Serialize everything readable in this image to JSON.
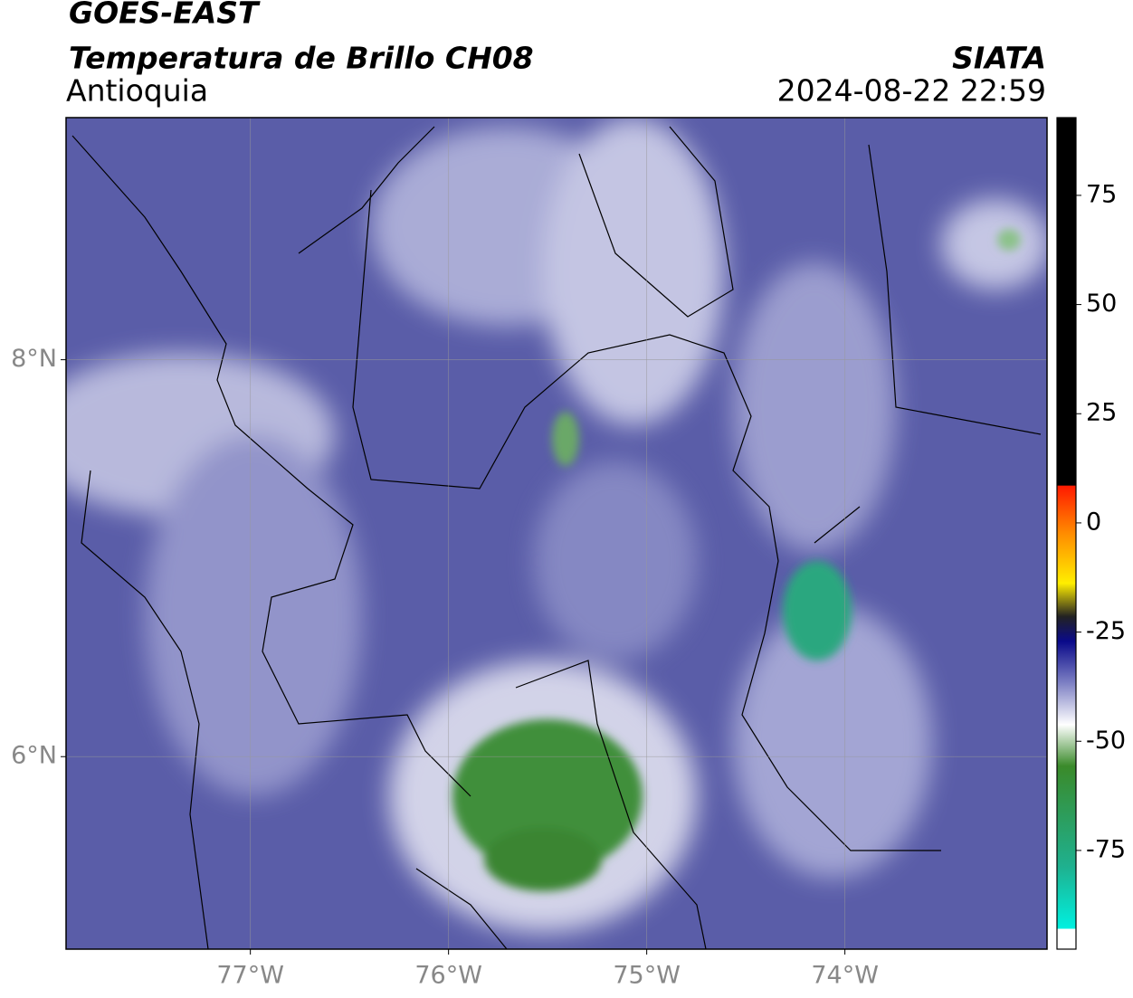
{
  "header": {
    "title": "GOES-EAST",
    "subtitle": "Temperatura de Brillo CH08",
    "region": "Antioquia",
    "source": "SIATA",
    "timestamp": "2024-08-22 22:59"
  },
  "map": {
    "xlim": [
      -77.93,
      -72.98
    ],
    "ylim": [
      5.03,
      9.22
    ],
    "xticks": [
      {
        "value": -77,
        "label": "77°W"
      },
      {
        "value": -76,
        "label": "76°W"
      },
      {
        "value": -75,
        "label": "75°W"
      },
      {
        "value": -74,
        "label": "74°W"
      }
    ],
    "yticks": [
      {
        "value": 8,
        "label": "8°N"
      },
      {
        "value": 6,
        "label": "6°N"
      }
    ],
    "grid": true
  },
  "colorbar": {
    "lim": [
      -97.6,
      92.8
    ],
    "ticks": [
      75,
      50,
      25,
      0,
      -25,
      -50,
      -75
    ]
  }
}
